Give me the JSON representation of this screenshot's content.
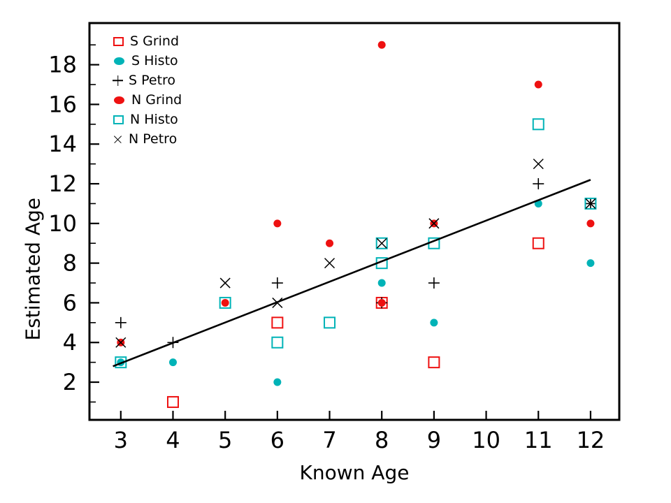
{
  "chart_data": {
    "type": "scatter",
    "title": "",
    "xlabel": "Known Age",
    "ylabel": "Estimated Age",
    "xlim": [
      2.4,
      12.55
    ],
    "ylim": [
      0.1,
      20.1
    ],
    "xticks": [
      3,
      4,
      5,
      6,
      7,
      8,
      9,
      10,
      11,
      12
    ],
    "yticks_major": [
      2,
      4,
      6,
      8,
      10,
      12,
      14,
      16,
      18
    ],
    "yticks_minor": [
      1,
      3,
      5,
      7,
      9,
      11,
      13,
      15,
      17,
      19
    ],
    "grid": false,
    "legend_position": "top-left-inside",
    "colors": {
      "red": "#ee1111",
      "teal": "#00b3b7",
      "black": "#000000"
    },
    "series": [
      {
        "name": "S Grind",
        "marker": "open-square",
        "color": "red",
        "points": [
          [
            4,
            1
          ],
          [
            6,
            5
          ],
          [
            8,
            6
          ],
          [
            9,
            3
          ],
          [
            11,
            9
          ]
        ]
      },
      {
        "name": "S Histo",
        "marker": "filled-circle",
        "color": "teal",
        "points": [
          [
            3,
            3
          ],
          [
            4,
            3
          ],
          [
            6,
            2
          ],
          [
            8,
            7
          ],
          [
            9,
            5
          ],
          [
            11,
            11
          ],
          [
            12,
            8
          ]
        ]
      },
      {
        "name": "S Petro",
        "marker": "plus",
        "color": "black",
        "points": [
          [
            3,
            5
          ],
          [
            4,
            4
          ],
          [
            6,
            7
          ],
          [
            8,
            6
          ],
          [
            9,
            7
          ],
          [
            11,
            12
          ],
          [
            12,
            11
          ]
        ]
      },
      {
        "name": "N Grind",
        "marker": "filled-circle",
        "color": "red",
        "points": [
          [
            3,
            4
          ],
          [
            5,
            6
          ],
          [
            6,
            10
          ],
          [
            7,
            9
          ],
          [
            8,
            6
          ],
          [
            8,
            19
          ],
          [
            9,
            10
          ],
          [
            11,
            17
          ],
          [
            12,
            10
          ]
        ]
      },
      {
        "name": "N Histo",
        "marker": "open-square",
        "color": "teal",
        "points": [
          [
            3,
            3
          ],
          [
            5,
            6
          ],
          [
            6,
            4
          ],
          [
            7,
            5
          ],
          [
            8,
            8
          ],
          [
            8,
            9
          ],
          [
            9,
            9
          ],
          [
            11,
            15
          ],
          [
            12,
            11
          ]
        ]
      },
      {
        "name": "N Petro",
        "marker": "x",
        "color": "black",
        "points": [
          [
            3,
            4
          ],
          [
            5,
            7
          ],
          [
            6,
            6
          ],
          [
            7,
            8
          ],
          [
            8,
            9
          ],
          [
            9,
            10
          ],
          [
            11,
            13
          ],
          [
            12,
            11
          ]
        ]
      }
    ],
    "fit_line": {
      "x1": 2.85,
      "y1": 2.8,
      "x2": 12.0,
      "y2": 12.2
    }
  }
}
